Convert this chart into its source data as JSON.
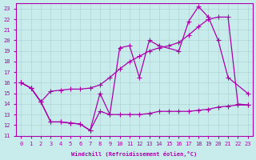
{
  "xlabel": "Windchill (Refroidissement éolien,°C)",
  "bg_color": "#c8ecec",
  "line_color": "#aa00aa",
  "xlim": [
    -0.5,
    23.5
  ],
  "ylim": [
    11,
    23.5
  ],
  "xticks": [
    0,
    1,
    2,
    3,
    4,
    5,
    6,
    7,
    8,
    9,
    10,
    11,
    12,
    13,
    14,
    15,
    16,
    17,
    18,
    19,
    20,
    21,
    22,
    23
  ],
  "yticks": [
    11,
    12,
    13,
    14,
    15,
    16,
    17,
    18,
    19,
    20,
    21,
    22,
    23
  ],
  "line1_x": [
    0,
    1,
    2,
    3,
    4,
    5,
    6,
    7,
    8,
    9,
    10,
    11,
    12,
    13,
    14,
    16,
    17,
    18,
    19,
    20,
    21,
    23
  ],
  "line1_y": [
    16,
    15.5,
    14.2,
    12.3,
    12.3,
    12.2,
    12.1,
    11.5,
    15.0,
    13.0,
    19.3,
    19.5,
    16.5,
    20.0,
    19.5,
    19.0,
    21.8,
    23.2,
    22.2,
    20.0,
    16.5,
    15.0
  ],
  "line2_x": [
    0,
    1,
    2,
    3,
    4,
    5,
    6,
    7,
    8,
    9,
    10,
    11,
    12,
    13,
    14,
    15,
    16,
    17,
    18,
    19,
    20,
    21,
    22,
    23
  ],
  "line2_y": [
    16,
    15.5,
    14.2,
    15.2,
    15.3,
    15.4,
    15.4,
    15.5,
    15.8,
    16.5,
    17.3,
    18.0,
    18.5,
    19.0,
    19.3,
    19.5,
    19.8,
    20.5,
    21.3,
    22.0,
    22.2,
    22.2,
    14.0,
    13.9
  ],
  "line3_x": [
    0,
    1,
    2,
    3,
    4,
    5,
    6,
    7,
    8,
    9,
    10,
    11,
    12,
    13,
    14,
    15,
    16,
    17,
    18,
    19,
    20,
    21,
    22,
    23
  ],
  "line3_y": [
    16,
    15.5,
    14.2,
    12.3,
    12.3,
    12.2,
    12.1,
    11.5,
    13.3,
    13.0,
    13.0,
    13.0,
    13.0,
    13.1,
    13.3,
    13.3,
    13.3,
    13.3,
    13.4,
    13.5,
    13.7,
    13.8,
    13.9,
    13.9
  ]
}
